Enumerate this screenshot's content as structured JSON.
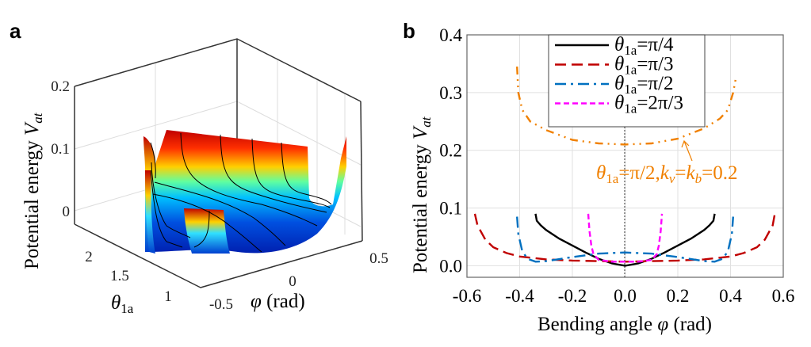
{
  "panels": {
    "a": "a",
    "b": "b"
  },
  "chart_data": [
    {
      "type": "surface",
      "zlabel": {
        "main": "Potential energy ",
        "var": "V",
        "sub": "at"
      },
      "ylabel": {
        "var": "θ",
        "sub": "1a"
      },
      "xlabel": {
        "var": "φ",
        "unit": " (rad)"
      },
      "z_ticks": [
        "0",
        "0.1",
        "0.2"
      ],
      "theta_ticks": [
        "2",
        "1.5",
        "1"
      ],
      "phi_ticks": [
        "-0.5",
        "0",
        "0.5"
      ],
      "zlim": [
        -0.02,
        0.2
      ],
      "colormap": "jet",
      "grid": true
    },
    {
      "type": "line",
      "xlabel": {
        "main": "Bending angle ",
        "var": "φ",
        "unit": " (rad)"
      },
      "ylabel": {
        "main": "Potential energy ",
        "var": "V",
        "sub": "at"
      },
      "xlim": [
        -0.6,
        0.6
      ],
      "ylim": [
        -0.02,
        0.4
      ],
      "x_ticks": [
        "-0.6",
        "-0.4",
        "-0.2",
        "0.0",
        "0.2",
        "0.4",
        "0.6"
      ],
      "y_ticks": [
        "0.0",
        "0.1",
        "0.2",
        "0.3",
        "0.4"
      ],
      "grid": true,
      "legend_position": "top-center",
      "series": [
        {
          "name": {
            "var": "θ",
            "sub": "1a",
            "rest": "=π/4"
          },
          "color": "#000000",
          "style": "solid",
          "x": [
            -0.34,
            -0.335,
            -0.32,
            -0.3,
            -0.25,
            -0.2,
            -0.15,
            -0.1,
            -0.05,
            0,
            0.05,
            0.1,
            0.15,
            0.2,
            0.25,
            0.3,
            0.32,
            0.335,
            0.34
          ],
          "y": [
            0.09,
            0.078,
            0.07,
            0.062,
            0.047,
            0.035,
            0.023,
            0.012,
            0.004,
            0.0,
            0.004,
            0.012,
            0.023,
            0.035,
            0.047,
            0.062,
            0.07,
            0.078,
            0.09
          ]
        },
        {
          "name": {
            "var": "θ",
            "sub": "1a",
            "rest": "=π/3"
          },
          "color": "#c00000",
          "style": "dashed",
          "x": [
            -0.57,
            -0.56,
            -0.53,
            -0.5,
            -0.45,
            -0.4,
            -0.3,
            -0.2,
            -0.1,
            0,
            0.1,
            0.2,
            0.3,
            0.4,
            0.45,
            0.5,
            0.53,
            0.56,
            0.57
          ],
          "y": [
            0.09,
            0.07,
            0.045,
            0.032,
            0.022,
            0.016,
            0.011,
            0.009,
            0.008,
            0.007,
            0.008,
            0.009,
            0.011,
            0.016,
            0.022,
            0.032,
            0.045,
            0.07,
            0.095
          ]
        },
        {
          "name": {
            "var": "θ",
            "sub": "1a",
            "rest": "=π/2"
          },
          "color": "#0070c0",
          "style": "dash-dot",
          "x": [
            -0.41,
            -0.405,
            -0.39,
            -0.37,
            -0.34,
            -0.3,
            -0.2,
            -0.1,
            0,
            0.1,
            0.2,
            0.3,
            0.34,
            0.37,
            0.39,
            0.405,
            0.41
          ],
          "y": [
            0.085,
            0.055,
            0.025,
            0.012,
            0.007,
            0.008,
            0.015,
            0.021,
            0.023,
            0.021,
            0.015,
            0.008,
            0.007,
            0.012,
            0.025,
            0.055,
            0.085
          ]
        },
        {
          "name": {
            "var": "θ",
            "sub": "1a",
            "rest": "=2π/3"
          },
          "color": "#ff00ff",
          "style": "short-dashed",
          "x": [
            -0.14,
            -0.135,
            -0.128,
            -0.12,
            -0.1,
            -0.05,
            0,
            0.05,
            0.1,
            0.12,
            0.128,
            0.135,
            0.14
          ],
          "y": [
            0.09,
            0.06,
            0.035,
            0.02,
            0.01,
            0.007,
            0.007,
            0.007,
            0.01,
            0.02,
            0.035,
            0.06,
            0.09
          ]
        },
        {
          "name": null,
          "color": "#f08000",
          "style": "dash-dot-dot",
          "x": [
            -0.41,
            -0.405,
            -0.39,
            -0.36,
            -0.3,
            -0.2,
            -0.1,
            0,
            0.1,
            0.2,
            0.3,
            0.36,
            0.39,
            0.41,
            0.42
          ],
          "y": [
            0.345,
            0.3,
            0.27,
            0.25,
            0.235,
            0.218,
            0.212,
            0.21,
            0.212,
            0.22,
            0.238,
            0.255,
            0.27,
            0.3,
            0.325
          ]
        }
      ],
      "annotation": {
        "var1": "θ",
        "sub1": "1a",
        "mid": "=π/2,",
        "var2": "k",
        "sub2": "v",
        "eq": "=",
        "var3": "k",
        "sub3": "b",
        "end": "=0.2",
        "color": "#f08000"
      }
    }
  ]
}
